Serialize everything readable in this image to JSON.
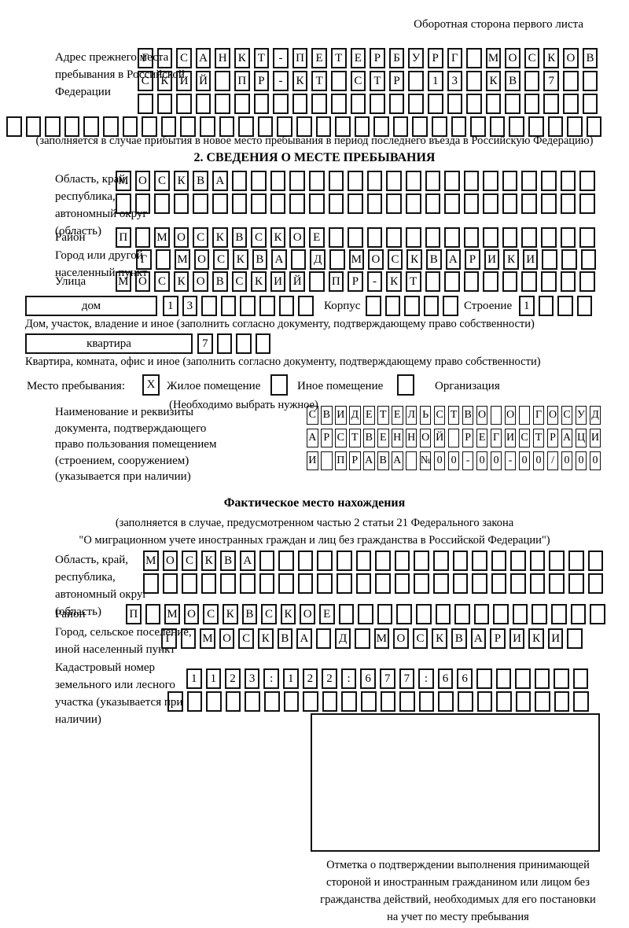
{
  "page": {
    "back_side_note": "Оборотная сторона первого листа"
  },
  "prev_address": {
    "label": "Адрес прежнего места пребывания в Российской Федерации",
    "row1": "Г САНКТ-ПЕТЕРБУРГ МОСКОВ",
    "row2": "СКИЙ ПР-КТ СТР 13 КВ 7",
    "row3": "",
    "row4": "",
    "note": "(заполняется в случае прибытия в новое место пребывания в период последнего въезда в Российскую Федерацию)"
  },
  "section2": {
    "title": "2. СВЕДЕНИЯ О МЕСТЕ ПРЕБЫВАНИЯ",
    "region": {
      "label": "Область, край, республика, автономный округ (область)",
      "row1": "МОСКВА",
      "row2": ""
    },
    "district": {
      "label": "Район",
      "row": "П МОСКВСКОЕ"
    },
    "city": {
      "label": "Город или другой населенный пункт",
      "row": "Г МОСКВА Д МОСКВАРИКИ"
    },
    "street": {
      "label": "Улица",
      "row": "МОСКОВСКИЙ ПР-КТ"
    },
    "house": {
      "box_label": "дом",
      "cells": "13",
      "korpus_label": "Корпус",
      "korpus_cells": "",
      "stroenie_label": "Строение",
      "stroenie_cells": "1",
      "note": "Дом, участок, владение и иное (заполнить согласно документу, подтверждающему право собственности)"
    },
    "apartment": {
      "box_label": "квартира",
      "cells": "7",
      "note": "Квартира, комната, офис и иное (заполнить согласно документу, подтверждающему право собственности)"
    },
    "stay_type": {
      "label": "Место пребывания:",
      "options": [
        {
          "label": "Жилое помещение",
          "checked": "X"
        },
        {
          "label": "Иное помещение",
          "checked": ""
        },
        {
          "label": "Организация",
          "checked": ""
        }
      ],
      "note": "(Необходимо выбрать нужное)"
    },
    "document": {
      "label": "Наименование и реквизиты документа, подтверждающего право пользования помещением (строением, сооружением) (указывается при наличии)",
      "row1": "СВИДЕТЕЛЬСТВО О ГОСУД",
      "row2": "АРСТВЕННОЙ РЕГИСТРАЦИ",
      "row3": "И ПРАВА №00-00-00/000"
    }
  },
  "fact_location": {
    "title": "Фактическое место нахождения",
    "note_line1": "(заполняется в случае, предусмотренном частью 2 статьи 21 Федерального закона",
    "note_line2": "\"О миграционном учете иностранных граждан и лиц без гражданства в Российской Федерации\")",
    "region": {
      "label": "Область, край, республика, автономный округ (область)",
      "row1": "МОСКВА",
      "row2": ""
    },
    "district": {
      "label": "Район",
      "row": "П МОСКВСКОЕ"
    },
    "city": {
      "label": "Город, сельское поселение, иной населенный пункт",
      "row": "Г МОСКВА Д МОСКВАРИКИ"
    },
    "cadastre": {
      "label": "Кадастровый номер земельного или лесного участка (указывается при наличии)",
      "row1": "1123:122:677:66",
      "row2": ""
    },
    "confirmation": {
      "line1": "Отметка о подтверждении выполнения принимающей",
      "line2": "стороной и иностранным гражданином или лицом без",
      "line3": "гражданства действий, необходимых для его постановки",
      "line4": "на учет по месту пребывания"
    }
  }
}
